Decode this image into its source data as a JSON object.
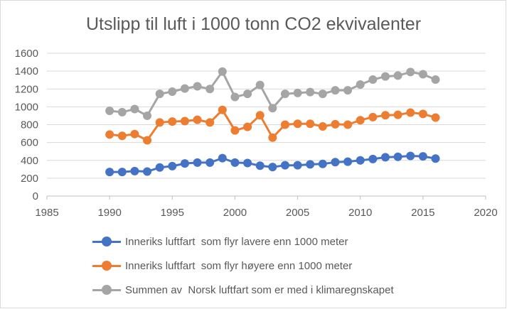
{
  "chart_data": {
    "type": "line",
    "title": "Utslipp til luft i 1000 tonn CO2 ekvivalenter",
    "xlabel": "",
    "ylabel": "",
    "xlim": [
      1985,
      2020
    ],
    "ylim": [
      0,
      1600
    ],
    "xticks": [
      1985,
      1990,
      1995,
      2000,
      2005,
      2010,
      2015,
      2020
    ],
    "yticks": [
      0,
      200,
      400,
      600,
      800,
      1000,
      1200,
      1400,
      1600
    ],
    "grid": "horizontal",
    "legend_position": "bottom",
    "x": [
      1990,
      1991,
      1992,
      1993,
      1994,
      1995,
      1996,
      1997,
      1998,
      1999,
      2000,
      2001,
      2002,
      2003,
      2004,
      2005,
      2006,
      2007,
      2008,
      2009,
      2010,
      2011,
      2012,
      2013,
      2014,
      2015,
      2016
    ],
    "series": [
      {
        "name": "Inneriks luftfart  som flyr lavere enn 1000 meter",
        "color": "#4472c4",
        "values": [
          270,
          270,
          280,
          275,
          320,
          335,
          365,
          375,
          375,
          425,
          375,
          370,
          340,
          325,
          345,
          345,
          355,
          360,
          380,
          385,
          400,
          415,
          435,
          440,
          450,
          445,
          420
        ]
      },
      {
        "name": "Inneriks luftfart  som flyr høyere enn 1000 meter",
        "color": "#ed7d31",
        "values": [
          690,
          675,
          695,
          625,
          825,
          835,
          840,
          855,
          825,
          965,
          735,
          775,
          905,
          655,
          800,
          810,
          810,
          780,
          805,
          800,
          850,
          885,
          905,
          910,
          935,
          920,
          880
        ]
      },
      {
        "name": "Summen av  Norsk luftfart som er med i klimaregnskapet",
        "color": "#a5a5a5",
        "values": [
          955,
          940,
          975,
          900,
          1145,
          1170,
          1205,
          1230,
          1200,
          1395,
          1110,
          1145,
          1245,
          985,
          1145,
          1155,
          1165,
          1145,
          1185,
          1185,
          1250,
          1305,
          1340,
          1350,
          1390,
          1365,
          1305
        ]
      }
    ]
  }
}
